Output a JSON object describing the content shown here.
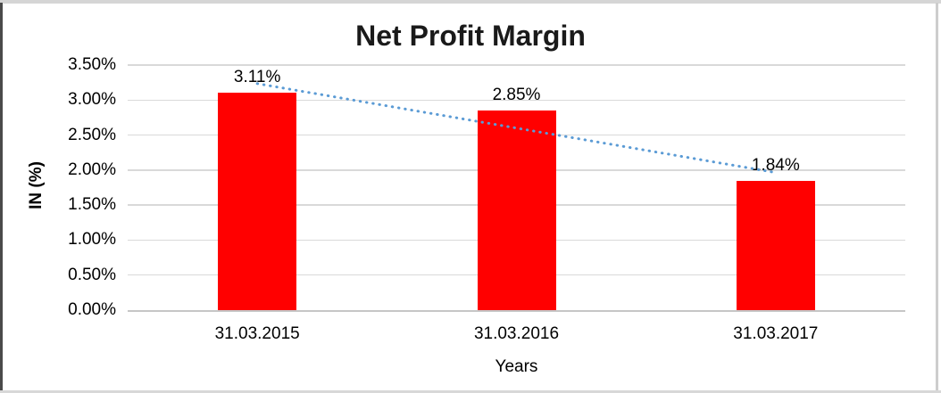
{
  "chart_data": {
    "type": "bar",
    "title": "Net Profit Margin",
    "xlabel": "Years",
    "ylabel": "IN (%)",
    "categories": [
      "31.03.2015",
      "31.03.2016",
      "31.03.2017"
    ],
    "values": [
      3.11,
      2.85,
      1.84
    ],
    "data_labels": [
      "3.11%",
      "2.85%",
      "1.84%"
    ],
    "ylim": [
      0,
      3.5
    ],
    "ytick_step": 0.5,
    "ytick_labels": [
      "0.00%",
      "0.50%",
      "1.00%",
      "1.50%",
      "2.00%",
      "2.50%",
      "3.00%",
      "3.50%"
    ],
    "grid": true,
    "legend": "none",
    "bar_color": "#FF0000",
    "gridline_color": "#D9D9D9",
    "axis_color": "#C6C6C6",
    "trendline": {
      "type": "linear",
      "style": "dotted",
      "color": "#5B9BD5"
    }
  }
}
